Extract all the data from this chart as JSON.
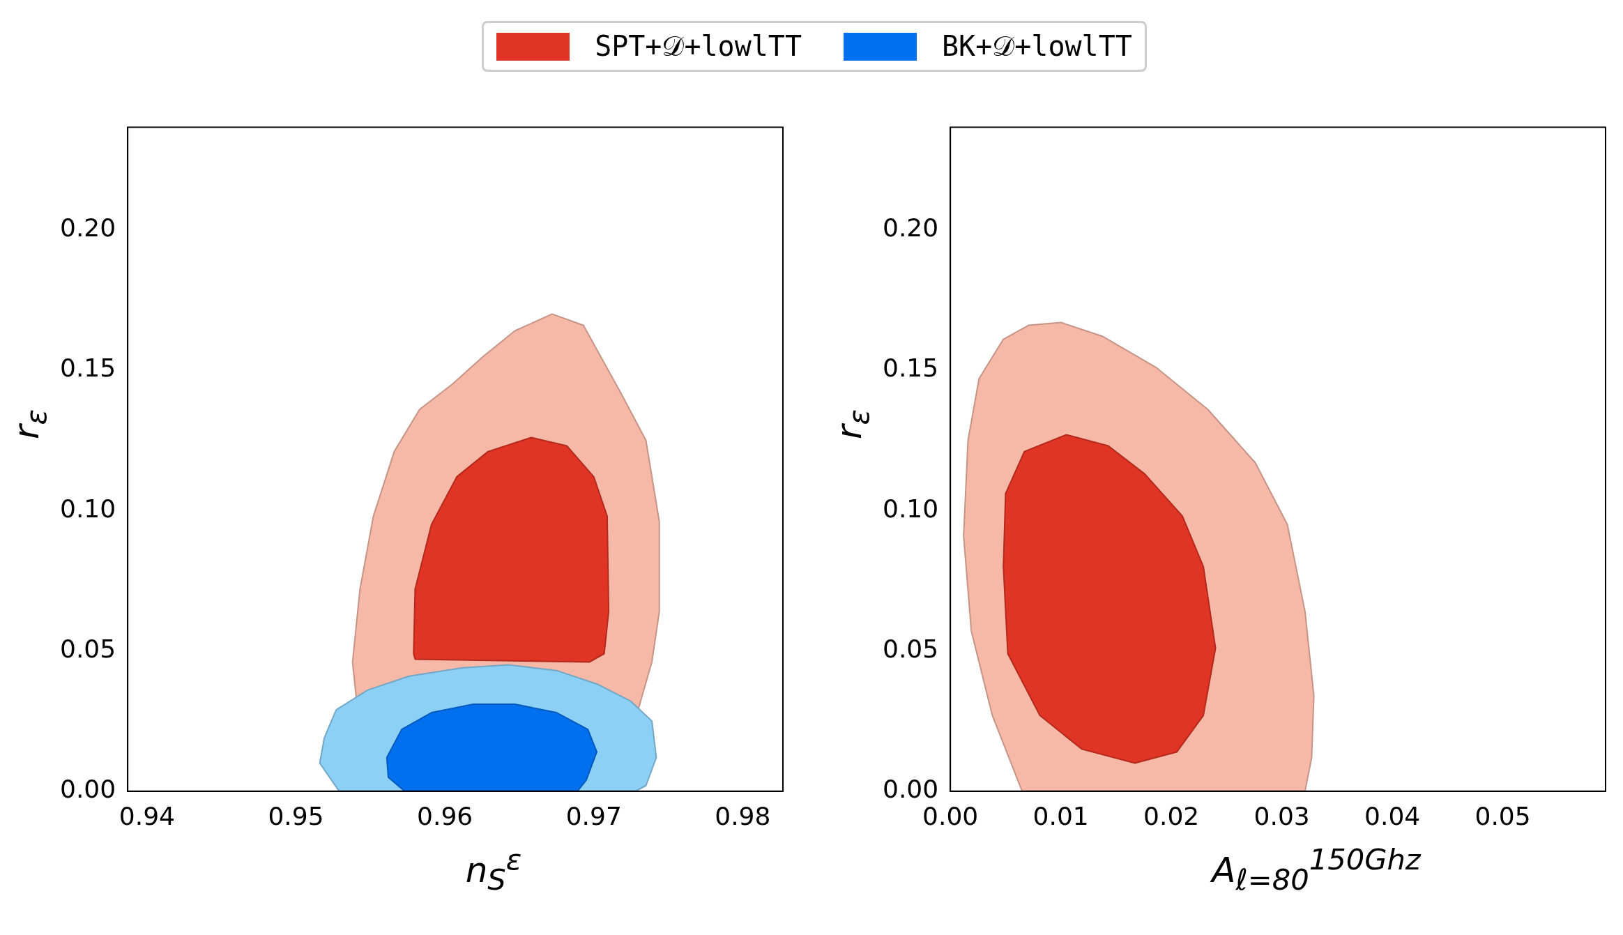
{
  "chart_data": [
    {
      "type": "area",
      "xlabel": "n$_{S}$$^{ε}$",
      "ylabel": "r$_{ε}$",
      "legend": "top",
      "grid": false,
      "marker": "none",
      "xlim": [
        0.9387,
        0.9827
      ],
      "ylim": [
        0,
        0.2365
      ],
      "xticks": [
        0.94,
        0.95,
        0.96,
        0.97,
        0.98
      ],
      "yticks": [
        {
          "value": 0,
          "label": "0.00"
        },
        {
          "value": 0.05,
          "label": "0.05"
        },
        {
          "value": 0.1,
          "label": "0.10"
        },
        {
          "value": 0.15,
          "label": "0.15"
        },
        {
          "value": 0.2,
          "label": "0.20"
        }
      ],
      "series": [
        {
          "color": "#f6b9a7",
          "x": [
            0.9547,
            0.9538,
            0.9543,
            0.9552,
            0.9566,
            0.9583,
            0.9605,
            0.9626,
            0.9647,
            0.9672,
            0.9693,
            0.9718,
            0.9735,
            0.9744,
            0.9744,
            0.9739,
            0.9714
          ],
          "values": [
            0,
            0.046,
            0.072,
            0.098,
            0.121,
            0.136,
            0.145,
            0.155,
            0.164,
            0.17,
            0.166,
            0.142,
            0.125,
            0.096,
            0.064,
            0.046,
            0
          ]
        },
        {
          "name": "SPT+𝒟+lowlTT",
          "color": "#e03424",
          "x": [
            0.958,
            0.9579,
            0.958,
            0.9591,
            0.9608,
            0.9629,
            0.9658,
            0.9682,
            0.97,
            0.9709,
            0.971,
            0.9707,
            0.9697
          ],
          "values": [
            0.047,
            0.049,
            0.072,
            0.095,
            0.112,
            0.121,
            0.126,
            0.123,
            0.112,
            0.098,
            0.064,
            0.049,
            0.046
          ]
        },
        {
          "color": "#8dd0f5",
          "x": [
            0.9529,
            0.9516,
            0.9519,
            0.9527,
            0.9548,
            0.9576,
            0.9612,
            0.9643,
            0.9675,
            0.9703,
            0.9725,
            0.9739,
            0.9742,
            0.9735,
            0.9728
          ],
          "values": [
            0,
            0.01,
            0.019,
            0.029,
            0.036,
            0.041,
            0.044,
            0.045,
            0.043,
            0.038,
            0.032,
            0.025,
            0.012,
            0.002,
            0
          ]
        },
        {
          "name": "BK+𝒟+lowlTT",
          "color": "#0070ee",
          "x": [
            0.9561,
            0.9571,
            0.9591,
            0.9619,
            0.9647,
            0.9675,
            0.9696,
            0.9702,
            0.9695,
            0.9689,
            0.9573,
            0.9562
          ],
          "values": [
            0.012,
            0.022,
            0.028,
            0.031,
            0.031,
            0.028,
            0.022,
            0.014,
            0.004,
            0,
            0,
            0.005
          ]
        }
      ]
    },
    {
      "type": "area",
      "xlabel": "A$_{ℓ=80}$$^{150Ghz}$",
      "ylabel": "r$_{ε}$",
      "grid": false,
      "marker": "none",
      "xlim": [
        0,
        0.0593
      ],
      "ylim": [
        0,
        0.2365
      ],
      "xticks": [
        {
          "value": 0,
          "label": "0.00"
        },
        {
          "value": 0.01,
          "label": "0.01"
        },
        {
          "value": 0.02,
          "label": "0.02"
        },
        {
          "value": 0.03,
          "label": "0.03"
        },
        {
          "value": 0.04,
          "label": "0.04"
        },
        {
          "value": 0.05,
          "label": "0.05"
        }
      ],
      "yticks": [
        {
          "value": 0,
          "label": "0.00"
        },
        {
          "value": 0.05,
          "label": "0.05"
        },
        {
          "value": 0.1,
          "label": "0.10"
        },
        {
          "value": 0.15,
          "label": "0.15"
        },
        {
          "value": 0.2,
          "label": "0.20"
        }
      ],
      "series": [
        {
          "color": "#f6b9a7",
          "x": [
            0.0065,
            0.0038,
            0.0019,
            0.0012,
            0.0016,
            0.0026,
            0.0048,
            0.0071,
            0.01,
            0.0138,
            0.0186,
            0.0233,
            0.0276,
            0.0305,
            0.0321,
            0.0329,
            0.0327,
            0.0321
          ],
          "values": [
            0,
            0.027,
            0.057,
            0.091,
            0.125,
            0.147,
            0.161,
            0.166,
            0.167,
            0.162,
            0.151,
            0.136,
            0.117,
            0.095,
            0.064,
            0.034,
            0.012,
            0
          ]
        },
        {
          "color": "#e03424",
          "x": [
            0.0052,
            0.0048,
            0.005,
            0.0067,
            0.0105,
            0.0143,
            0.0176,
            0.021,
            0.0229,
            0.024,
            0.0229,
            0.0205,
            0.0167,
            0.0119,
            0.0081
          ],
          "values": [
            0.049,
            0.08,
            0.106,
            0.121,
            0.127,
            0.123,
            0.113,
            0.098,
            0.08,
            0.051,
            0.027,
            0.014,
            0.01,
            0.015,
            0.027
          ]
        }
      ]
    }
  ]
}
